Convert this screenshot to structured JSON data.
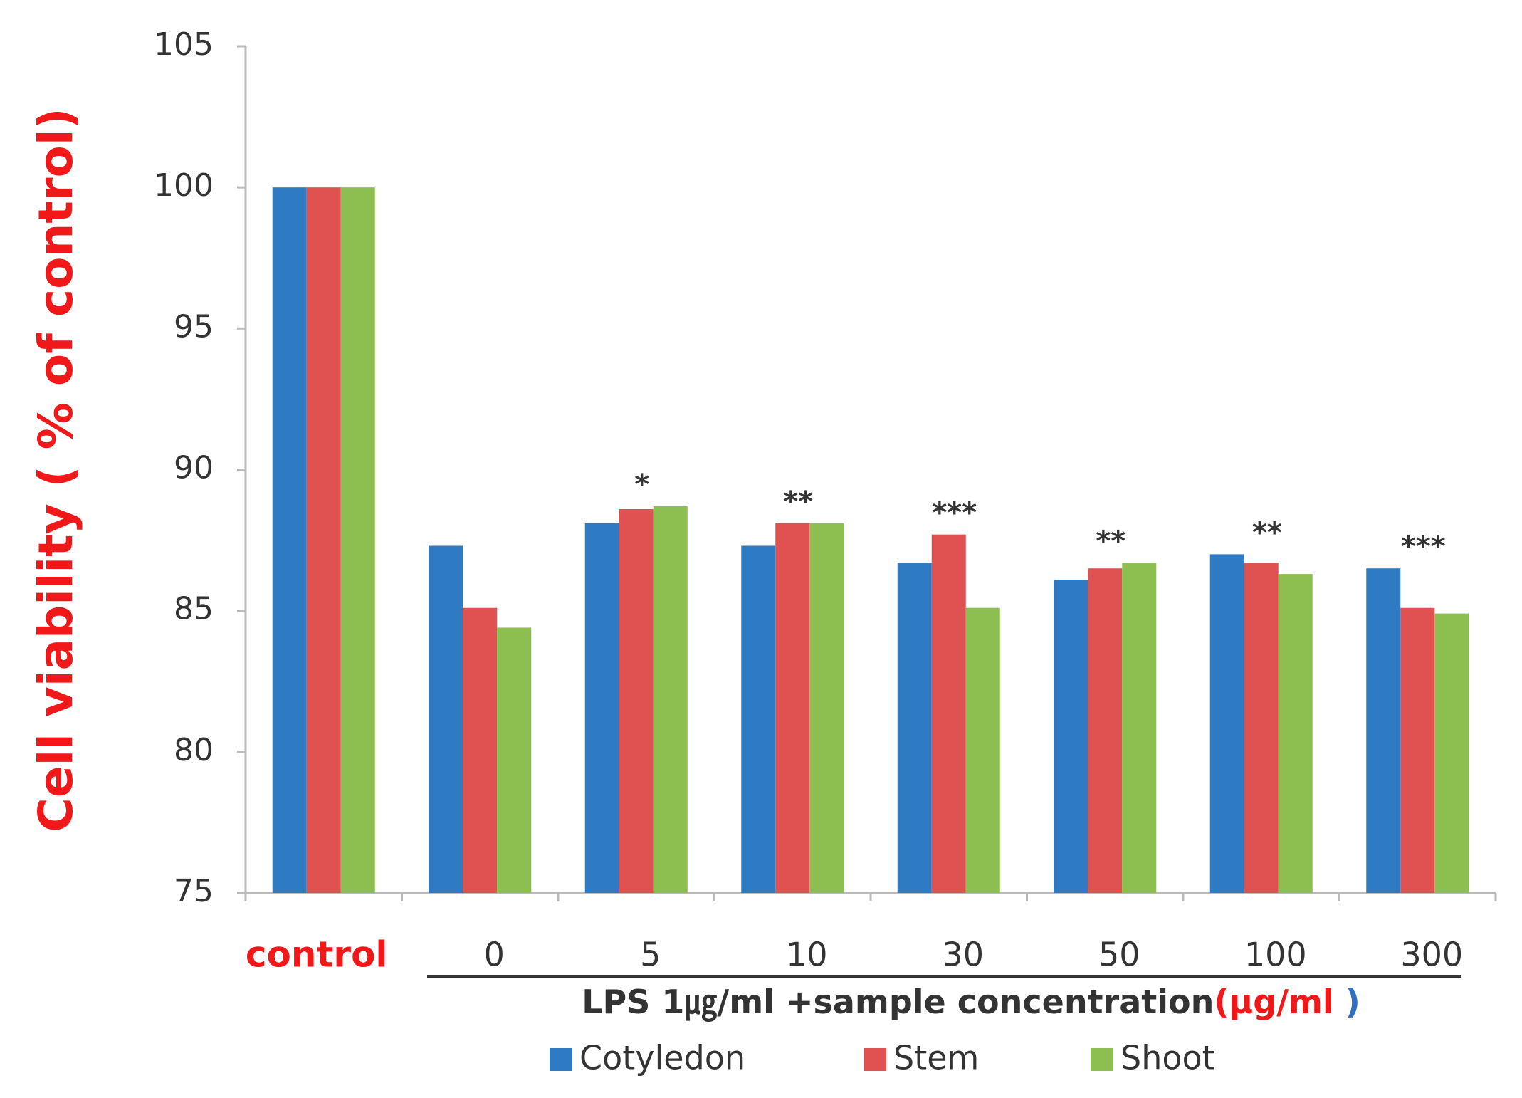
{
  "chart_data": {
    "type": "bar",
    "ylabel": "Cell viability ( % of control)",
    "xlabel": "LPS 1㎍/ml +sample concentration",
    "xlabel_unit": "(µg/ml",
    "xlabel_close": " )",
    "categories": [
      "control",
      "0",
      "5",
      "10",
      "30",
      "50",
      "100",
      "300"
    ],
    "series": [
      {
        "name": "Cotyledon",
        "color": "#2e7bc4",
        "values": [
          100,
          87.3,
          88.1,
          87.3,
          86.7,
          86.1,
          87.0,
          86.5
        ]
      },
      {
        "name": "Stem",
        "color": "#e05252",
        "values": [
          100,
          85.1,
          88.6,
          88.1,
          87.7,
          86.5,
          86.7,
          85.1
        ]
      },
      {
        "name": "Shoot",
        "color": "#8cbf4f",
        "values": [
          100,
          84.4,
          88.7,
          88.1,
          85.1,
          86.7,
          86.3,
          84.9
        ]
      }
    ],
    "annotations": [
      null,
      null,
      "*",
      "**",
      "***",
      "**",
      "**",
      "***"
    ],
    "ylim": [
      75,
      105
    ],
    "yticks": [
      75,
      80,
      85,
      90,
      95,
      100,
      105
    ],
    "grid": false
  }
}
